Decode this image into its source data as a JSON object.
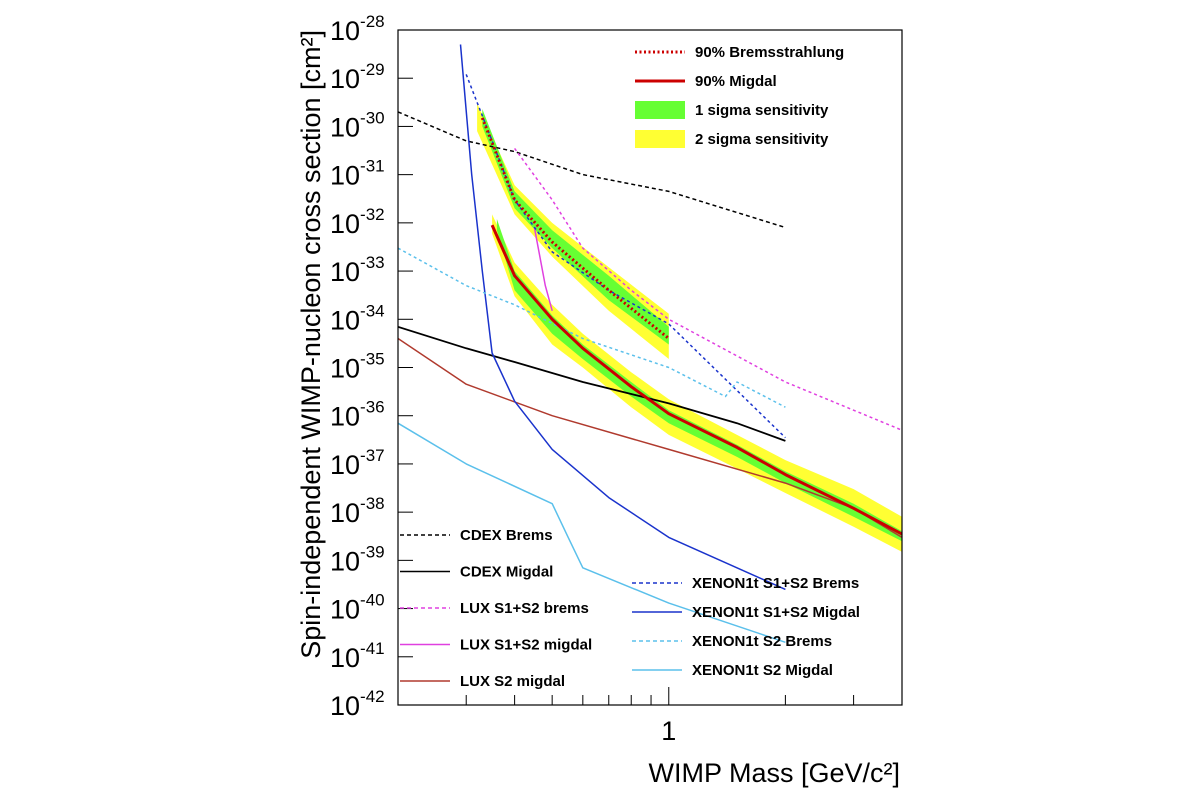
{
  "chart_data": {
    "type": "line",
    "xlabel": "WIMP Mass [GeV/c²]",
    "ylabel": "Spin-independent WIMP-nucleon cross section [cm²]",
    "xscale": "log",
    "yscale": "log",
    "xlim": [
      0.2,
      4.0
    ],
    "ylim": [
      1e-42,
      1e-28
    ],
    "x_tick_labels": [
      "1"
    ],
    "y_tick_labels": [
      {
        "base": "10",
        "exp": "-28"
      },
      {
        "base": "10",
        "exp": "-29"
      },
      {
        "base": "10",
        "exp": "-30"
      },
      {
        "base": "10",
        "exp": "-31"
      },
      {
        "base": "10",
        "exp": "-32"
      },
      {
        "base": "10",
        "exp": "-33"
      },
      {
        "base": "10",
        "exp": "-34"
      },
      {
        "base": "10",
        "exp": "-35"
      },
      {
        "base": "10",
        "exp": "-36"
      },
      {
        "base": "10",
        "exp": "-37"
      },
      {
        "base": "10",
        "exp": "-38"
      },
      {
        "base": "10",
        "exp": "-39"
      },
      {
        "base": "10",
        "exp": "-40"
      },
      {
        "base": "10",
        "exp": "-41"
      },
      {
        "base": "10",
        "exp": "-42"
      }
    ],
    "grid": false,
    "legend_top": {
      "placement": "top-right",
      "entries": [
        {
          "label": "90% Bremsstrahlung",
          "style": "dotted",
          "color": "#cc0000"
        },
        {
          "label": "90% Migdal",
          "style": "solid",
          "color": "#cc0000"
        },
        {
          "label": "1 sigma sensitivity",
          "style": "band",
          "color": "#66ff33"
        },
        {
          "label": "2 sigma sensitivity",
          "style": "band",
          "color": "#ffff33"
        }
      ]
    },
    "legend_bottom_left": {
      "placement": "bottom-left",
      "entries": [
        {
          "label": "CDEX Brems",
          "style": "dashed",
          "color": "#000000"
        },
        {
          "label": "CDEX Migdal",
          "style": "solid",
          "color": "#000000"
        },
        {
          "label": "LUX S1+S2 brems",
          "style": "dashed",
          "color": "#e040e0"
        },
        {
          "label": "LUX S1+S2 migdal",
          "style": "solid",
          "color": "#e040e0"
        },
        {
          "label": "LUX S2 migdal",
          "style": "solid",
          "color": "#b03a2e"
        }
      ]
    },
    "legend_bottom_right": {
      "placement": "bottom-right",
      "entries": [
        {
          "label": "XENON1t S1+S2 Brems",
          "style": "dashed",
          "color": "#1a33cc"
        },
        {
          "label": "XENON1t S1+S2 Migdal",
          "style": "solid",
          "color": "#1a33cc"
        },
        {
          "label": "XENON1t S2 Brems",
          "style": "dashed",
          "color": "#5bc0eb"
        },
        {
          "label": "XENON1t S2 Migdal",
          "style": "solid",
          "color": "#5bc0eb"
        }
      ]
    },
    "bands": [
      {
        "name": "Brems 2 sigma",
        "color": "#ffff33",
        "x": [
          0.32,
          0.4,
          0.5,
          0.7,
          1.0
        ],
        "low": [
          8e-31,
          1.5e-32,
          2e-33,
          1.5e-34,
          1.5e-35
        ],
        "high": [
          3e-30,
          6e-32,
          1e-32,
          1.2e-33,
          1.3e-34
        ]
      },
      {
        "name": "Brems 1 sigma",
        "color": "#66ff33",
        "x": [
          0.33,
          0.4,
          0.5,
          0.7,
          1.0
        ],
        "low": [
          1e-30,
          2e-32,
          3e-33,
          2.5e-34,
          3e-35
        ],
        "high": [
          2.3e-30,
          4.5e-32,
          7e-33,
          8e-34,
          7e-35
        ]
      },
      {
        "name": "Migdal 2 sigma",
        "color": "#ffff33",
        "x": [
          0.35,
          0.4,
          0.5,
          0.6,
          0.8,
          1.0,
          1.5,
          2.0,
          3.0,
          4.0
        ],
        "low": [
          6e-33,
          3e-34,
          3e-35,
          1e-35,
          1.5e-36,
          4e-37,
          8e-38,
          2.5e-38,
          5e-39,
          1.5e-39
        ],
        "high": [
          1.5e-32,
          1.5e-33,
          2e-34,
          5e-35,
          8e-36,
          2.2e-36,
          4e-37,
          1.2e-37,
          3e-38,
          8e-39
        ]
      },
      {
        "name": "Migdal 1 sigma",
        "color": "#66ff33",
        "x": [
          0.36,
          0.4,
          0.5,
          0.6,
          0.8,
          1.0,
          1.5,
          2.0,
          3.0,
          4.0
        ],
        "low": [
          7e-33,
          4e-34,
          5e-35,
          1.5e-35,
          2.5e-36,
          7e-37,
          1.4e-37,
          4e-38,
          8e-39,
          2.5e-39
        ],
        "high": [
          1.2e-32,
          1e-33,
          1.2e-34,
          3e-35,
          5e-36,
          1.3e-36,
          2.5e-37,
          7e-38,
          1.5e-38,
          4e-39
        ]
      }
    ],
    "series": [
      {
        "name": "CDEX Brems",
        "color": "#000000",
        "dash": "4,3",
        "width": 1.5,
        "x": [
          0.2,
          0.3,
          0.4,
          0.6,
          1.0,
          2.0
        ],
        "y": [
          2e-30,
          5e-31,
          3e-31,
          1e-31,
          4.5e-32,
          8e-33
        ]
      },
      {
        "name": "CDEX Migdal",
        "color": "#000000",
        "dash": "",
        "width": 1.8,
        "x": [
          0.2,
          0.3,
          0.4,
          0.6,
          1.0,
          1.5,
          2.0
        ],
        "y": [
          7e-35,
          2.5e-35,
          1.3e-35,
          5e-36,
          1.8e-36,
          7e-37,
          3e-37
        ]
      },
      {
        "name": "LUX S1+S2 brems",
        "color": "#e040e0",
        "dash": "3,3",
        "width": 1.5,
        "x": [
          0.4,
          0.5,
          0.6,
          0.8,
          1.0,
          2.0,
          4.0
        ],
        "y": [
          3.5e-31,
          3e-32,
          3e-33,
          4e-34,
          1e-34,
          5e-36,
          5e-37
        ]
      },
      {
        "name": "LUX S1+S2 migdal",
        "color": "#e040e0",
        "dash": "",
        "width": 1.5,
        "x": [
          0.45,
          0.48,
          0.5
        ],
        "y": [
          8e-33,
          5e-34,
          1.5e-34
        ]
      },
      {
        "name": "LUX S2 migdal",
        "color": "#b03a2e",
        "dash": "",
        "width": 1.5,
        "x": [
          0.2,
          0.3,
          0.5,
          1.0,
          2.0,
          3.0,
          4.0
        ],
        "y": [
          4e-35,
          4.5e-36,
          1e-36,
          2e-37,
          4e-38,
          1.2e-38,
          3e-39
        ]
      },
      {
        "name": "XENON1t S1+S2 Brems",
        "color": "#1a33cc",
        "dash": "3,3",
        "width": 1.5,
        "x": [
          0.3,
          0.35,
          0.4,
          0.5,
          0.7,
          1.0,
          2.0
        ],
        "y": [
          1.2e-29,
          5e-31,
          3e-32,
          2.5e-33,
          4e-34,
          8e-35,
          3.5e-37
        ]
      },
      {
        "name": "XENON1t S1+S2 Migdal",
        "color": "#1a33cc",
        "dash": "",
        "width": 1.5,
        "x": [
          0.29,
          0.31,
          0.33,
          0.35,
          0.4,
          0.5,
          0.7,
          1.0,
          2.0
        ],
        "y": [
          5e-29,
          1e-31,
          1e-33,
          2e-35,
          2e-36,
          2e-37,
          2e-38,
          3e-39,
          2.5e-40
        ]
      },
      {
        "name": "XENON1t S2 Brems",
        "color": "#5bc0eb",
        "dash": "3,3",
        "width": 1.5,
        "x": [
          0.2,
          0.3,
          0.4,
          0.6,
          1.0,
          1.4,
          1.5,
          2.0
        ],
        "y": [
          3e-33,
          5e-34,
          2e-34,
          4e-35,
          1e-35,
          2.5e-36,
          5e-36,
          1.5e-36
        ]
      },
      {
        "name": "XENON1t S2 Migdal",
        "color": "#5bc0eb",
        "dash": "",
        "width": 1.5,
        "x": [
          0.2,
          0.3,
          0.5,
          0.55,
          0.6,
          1.0,
          2.0
        ],
        "y": [
          7e-37,
          1e-37,
          1.5e-38,
          3e-39,
          7e-40,
          1.3e-40,
          2e-41
        ]
      },
      {
        "name": "90% Bremsstrahlung",
        "color": "#cc0000",
        "dash": "2,2.5",
        "width": 3,
        "x": [
          0.33,
          0.4,
          0.5,
          0.7,
          1.0
        ],
        "y": [
          1.5e-30,
          3e-32,
          4e-33,
          4e-34,
          4e-35
        ]
      },
      {
        "name": "90% Migdal",
        "color": "#cc0000",
        "dash": "",
        "width": 3,
        "x": [
          0.35,
          0.4,
          0.5,
          0.6,
          0.8,
          1.0,
          1.5,
          2.0,
          3.0,
          4.0
        ],
        "y": [
          9e-33,
          8e-34,
          1e-34,
          2.5e-35,
          4e-36,
          1.1e-36,
          2.2e-37,
          6e-38,
          1.2e-38,
          3.5e-39
        ]
      }
    ]
  }
}
